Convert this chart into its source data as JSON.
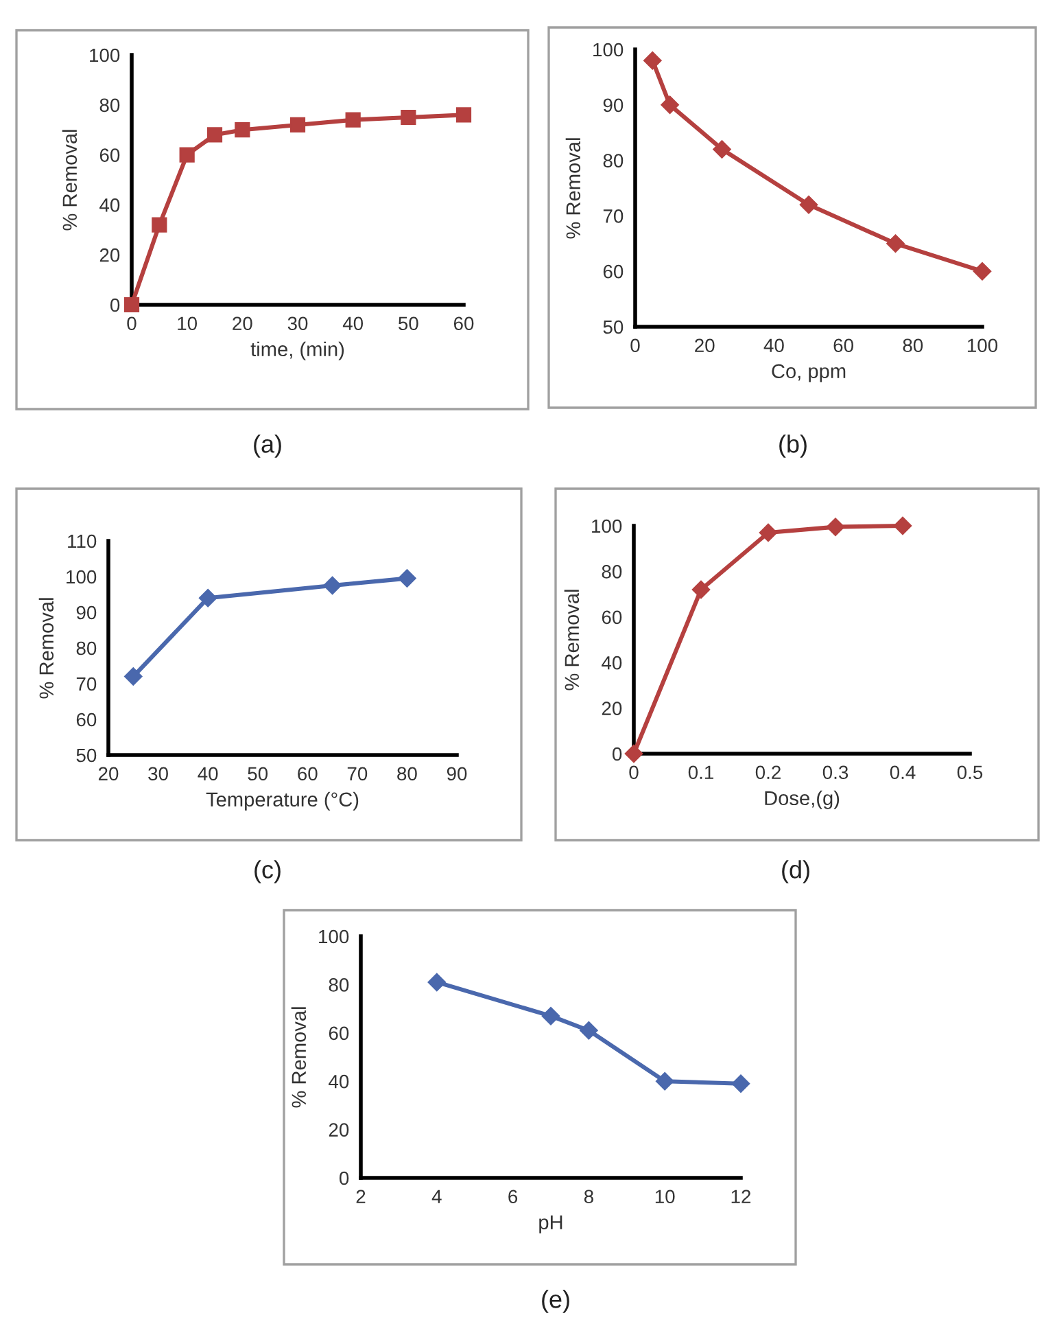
{
  "chart_data": [
    {
      "type": "line",
      "xlabel": "time, (min)",
      "ylabel": "% Removal",
      "annotations": [
        "(a)"
      ],
      "marker": "square",
      "line_style": "solid",
      "xlim": [
        0,
        60
      ],
      "xticks": [
        0,
        10,
        20,
        30,
        40,
        50,
        60
      ],
      "ylim": [
        0,
        100
      ],
      "yticks": [
        0,
        20,
        40,
        60,
        80,
        100
      ],
      "series": [
        {
          "color": "#b5403f",
          "x": [
            0,
            5,
            10,
            15,
            20,
            30,
            40,
            50,
            60
          ],
          "values": [
            0,
            32,
            60,
            68,
            70,
            72,
            74,
            75,
            76
          ]
        }
      ]
    },
    {
      "type": "line",
      "xlabel": "Co, ppm",
      "ylabel": "% Removal",
      "annotations": [
        "(b)"
      ],
      "marker": "diamond",
      "line_style": "solid",
      "xlim": [
        0,
        100
      ],
      "xticks": [
        0,
        20,
        40,
        60,
        80,
        100
      ],
      "ylim": [
        50,
        100
      ],
      "yticks": [
        50,
        60,
        70,
        80,
        90,
        100
      ],
      "series": [
        {
          "color": "#b5403f",
          "x": [
            5,
            10,
            25,
            50,
            75,
            100
          ],
          "values": [
            98,
            90,
            82,
            72,
            65,
            60
          ]
        }
      ]
    },
    {
      "type": "line",
      "xlabel": "Temperature (°C)",
      "ylabel": "% Removal",
      "annotations": [
        "(c)"
      ],
      "marker": "diamond",
      "line_style": "solid",
      "xlim": [
        20,
        90
      ],
      "xticks": [
        20,
        30,
        40,
        50,
        60,
        70,
        80,
        90
      ],
      "ylim": [
        50,
        110
      ],
      "yticks": [
        50,
        60,
        70,
        80,
        90,
        100,
        110
      ],
      "series": [
        {
          "color": "#4a68ad",
          "x": [
            25,
            40,
            65,
            80
          ],
          "values": [
            72,
            94,
            97.5,
            99.5
          ]
        }
      ]
    },
    {
      "type": "line",
      "xlabel": "Dose,(g)",
      "ylabel": "% Removal",
      "annotations": [
        "(d)"
      ],
      "marker": "diamond",
      "line_style": "solid",
      "xlim": [
        0,
        0.5
      ],
      "xticks": [
        0,
        0.1,
        0.2,
        0.3,
        0.4,
        0.5
      ],
      "ylim": [
        0,
        100
      ],
      "yticks": [
        0,
        20,
        40,
        60,
        80,
        100
      ],
      "series": [
        {
          "color": "#b5403f",
          "x": [
            0,
            0.1,
            0.2,
            0.3,
            0.4
          ],
          "values": [
            0,
            72,
            97,
            99.5,
            100
          ]
        }
      ]
    },
    {
      "type": "line",
      "xlabel": "pH",
      "ylabel": "% Removal",
      "annotations": [
        "(e)"
      ],
      "marker": "diamond",
      "line_style": "solid",
      "xlim": [
        2,
        12
      ],
      "xticks": [
        2,
        4,
        6,
        8,
        10,
        12
      ],
      "ylim": [
        0,
        100
      ],
      "yticks": [
        0,
        20,
        40,
        60,
        80,
        100
      ],
      "series": [
        {
          "color": "#4a68ad",
          "x": [
            4,
            7,
            8,
            10,
            12
          ],
          "values": [
            81,
            67,
            61,
            40,
            39
          ]
        }
      ]
    }
  ]
}
